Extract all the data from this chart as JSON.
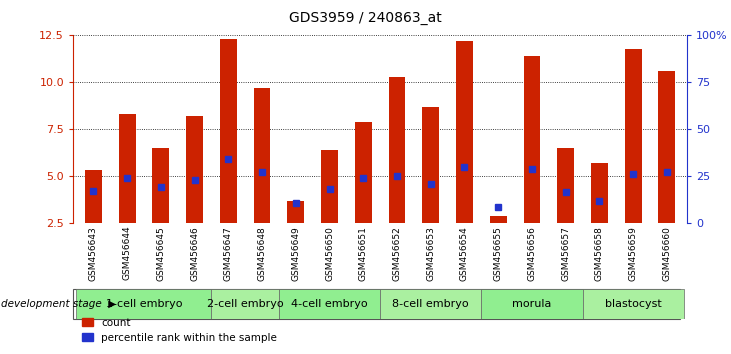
{
  "title": "GDS3959 / 240863_at",
  "samples": [
    "GSM456643",
    "GSM456644",
    "GSM456645",
    "GSM456646",
    "GSM456647",
    "GSM456648",
    "GSM456649",
    "GSM456650",
    "GSM456651",
    "GSM456652",
    "GSM456653",
    "GSM456654",
    "GSM456655",
    "GSM456656",
    "GSM456657",
    "GSM456658",
    "GSM456659",
    "GSM456660"
  ],
  "count_values": [
    5.3,
    8.3,
    6.5,
    8.2,
    12.3,
    9.7,
    3.7,
    6.4,
    7.9,
    10.3,
    8.7,
    12.2,
    2.9,
    11.4,
    6.5,
    5.7,
    11.8,
    10.6
  ],
  "percentile_values": [
    4.2,
    4.9,
    4.4,
    4.8,
    5.9,
    5.2,
    3.55,
    4.3,
    4.9,
    5.0,
    4.6,
    5.5,
    3.35,
    5.4,
    4.15,
    3.7,
    5.1,
    5.2
  ],
  "stages": [
    {
      "label": "1-cell embryo",
      "start": 0,
      "end": 3
    },
    {
      "label": "2-cell embryo",
      "start": 4,
      "end": 5
    },
    {
      "label": "4-cell embryo",
      "start": 6,
      "end": 8
    },
    {
      "label": "8-cell embryo",
      "start": 9,
      "end": 11
    },
    {
      "label": "morula",
      "start": 12,
      "end": 14
    },
    {
      "label": "blastocyst",
      "start": 15,
      "end": 17
    }
  ],
  "stage_colors": [
    "#90ee90",
    "#90ee90",
    "#90ee90",
    "#90ee90",
    "#90ee90",
    "#90ee90"
  ],
  "ylim_left": [
    2.5,
    12.5
  ],
  "yticks_left": [
    2.5,
    5.0,
    7.5,
    10.0,
    12.5
  ],
  "ylim_right": [
    0,
    100
  ],
  "yticks_right": [
    0,
    25,
    50,
    75,
    100
  ],
  "bar_color": "#cc2200",
  "percentile_color": "#2233cc",
  "tick_color_left": "#cc2200",
  "tick_color_right": "#2233cc",
  "bar_width": 0.5
}
